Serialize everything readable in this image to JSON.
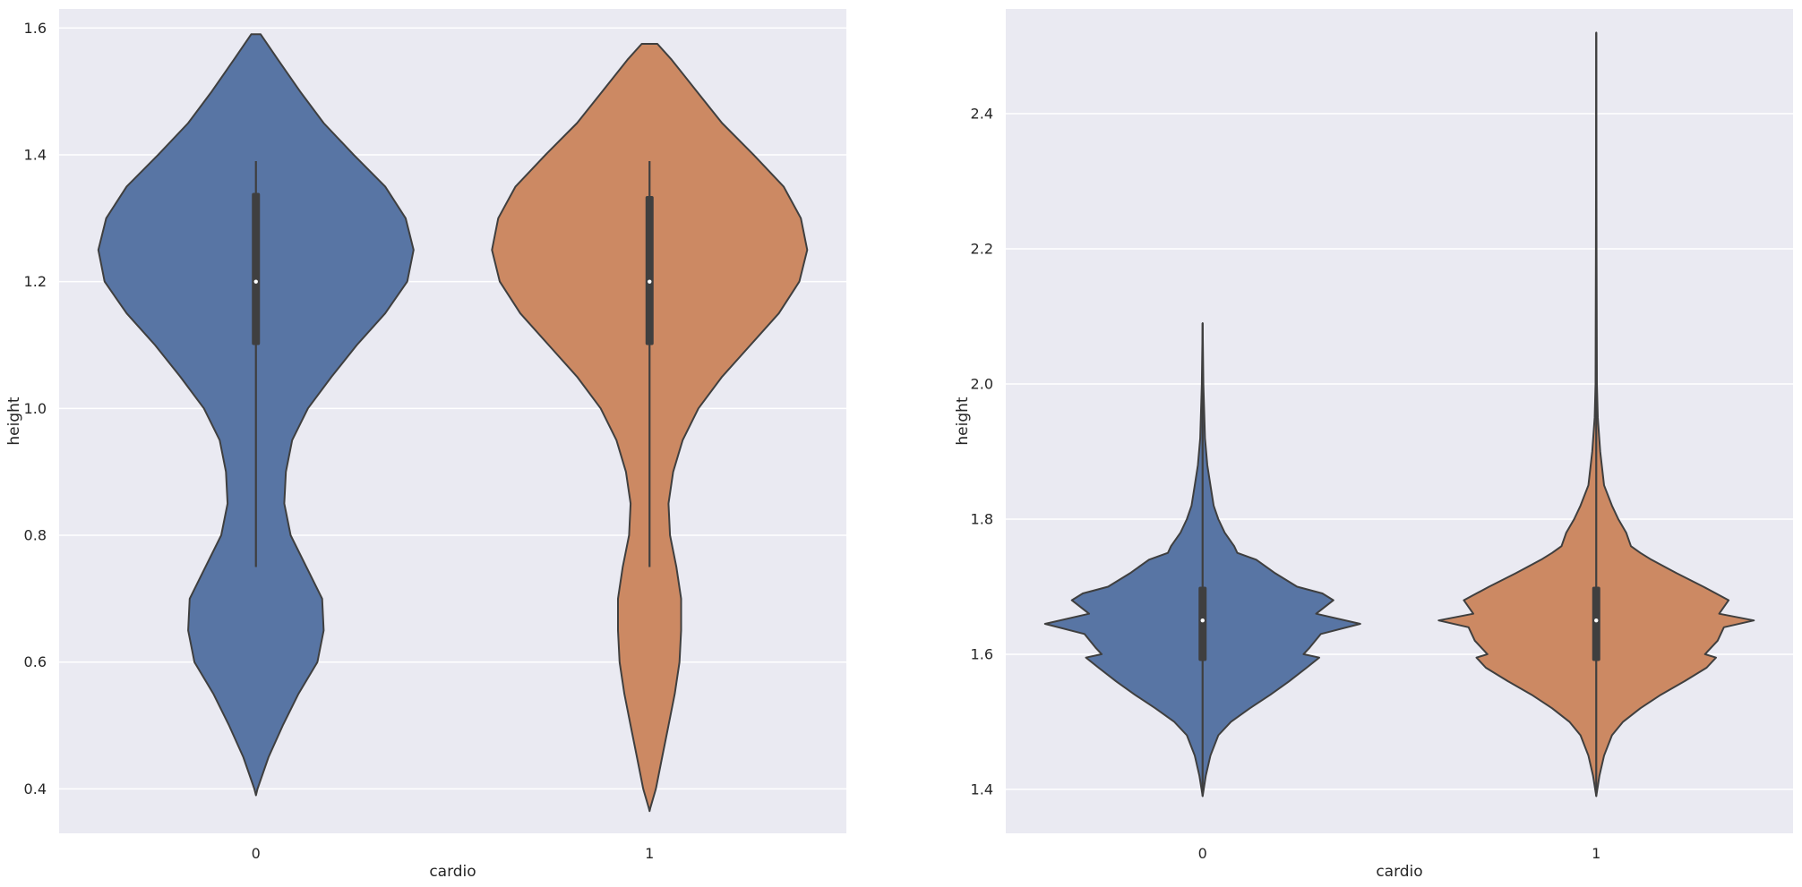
{
  "chart_data": [
    {
      "type": "violin",
      "xlabel": "cardio",
      "ylabel": "height",
      "ylim": [
        0.33,
        1.63
      ],
      "yticks": [
        0.4,
        0.6,
        0.8,
        1.0,
        1.2,
        1.4,
        1.6
      ],
      "ytick_labels": [
        "0.4",
        "0.6",
        "0.8",
        "1.0",
        "1.2",
        "1.4",
        "1.6"
      ],
      "categories": [
        "0",
        "1"
      ],
      "grid": true,
      "violins": [
        {
          "category": "0",
          "color": "#5875a4",
          "density_y": [
            0.39,
            0.4,
            0.45,
            0.5,
            0.55,
            0.6,
            0.65,
            0.7,
            0.75,
            0.8,
            0.85,
            0.9,
            0.95,
            1.0,
            1.05,
            1.1,
            1.15,
            1.2,
            1.25,
            1.3,
            1.35,
            1.4,
            1.45,
            1.5,
            1.55,
            1.59
          ],
          "density_width": [
            0.0,
            0.01,
            0.08,
            0.17,
            0.27,
            0.39,
            0.43,
            0.42,
            0.32,
            0.22,
            0.18,
            0.19,
            0.23,
            0.33,
            0.48,
            0.64,
            0.82,
            0.96,
            1.0,
            0.95,
            0.82,
            0.62,
            0.43,
            0.28,
            0.14,
            0.03
          ],
          "box": {
            "whisker_low": 0.75,
            "q1": 1.1,
            "median": 1.2,
            "q3": 1.34,
            "whisker_high": 1.39
          }
        },
        {
          "category": "1",
          "color": "#cc8963",
          "density_y": [
            0.365,
            0.37,
            0.4,
            0.45,
            0.5,
            0.55,
            0.6,
            0.65,
            0.7,
            0.75,
            0.8,
            0.85,
            0.9,
            0.95,
            1.0,
            1.05,
            1.1,
            1.15,
            1.2,
            1.25,
            1.3,
            1.35,
            1.4,
            1.45,
            1.5,
            1.55,
            1.575
          ],
          "density_width": [
            0.0,
            0.005,
            0.04,
            0.08,
            0.12,
            0.16,
            0.19,
            0.2,
            0.2,
            0.17,
            0.13,
            0.12,
            0.15,
            0.21,
            0.31,
            0.46,
            0.64,
            0.82,
            0.95,
            1.0,
            0.96,
            0.85,
            0.66,
            0.46,
            0.3,
            0.14,
            0.05
          ],
          "box": {
            "whisker_low": 0.75,
            "q1": 1.1,
            "median": 1.2,
            "q3": 1.335,
            "whisker_high": 1.39
          }
        }
      ]
    },
    {
      "type": "violin",
      "xlabel": "cardio",
      "ylabel": "height",
      "ylim": [
        1.335,
        2.555
      ],
      "yticks": [
        1.4,
        1.6,
        1.8,
        2.0,
        2.2,
        2.4
      ],
      "ytick_labels": [
        "1.4",
        "1.6",
        "1.8",
        "2.0",
        "2.2",
        "2.4"
      ],
      "categories": [
        "0",
        "1"
      ],
      "grid": true,
      "violins": [
        {
          "category": "0",
          "color": "#5875a4",
          "density_y": [
            1.39,
            1.42,
            1.45,
            1.48,
            1.5,
            1.52,
            1.54,
            1.56,
            1.58,
            1.595,
            1.6,
            1.61,
            1.63,
            1.645,
            1.66,
            1.68,
            1.69,
            1.7,
            1.72,
            1.74,
            1.75,
            1.76,
            1.78,
            1.8,
            1.82,
            1.85,
            1.88,
            1.92,
            2.0,
            2.09
          ],
          "density_width": [
            0.0,
            0.02,
            0.05,
            0.1,
            0.18,
            0.3,
            0.43,
            0.55,
            0.66,
            0.74,
            0.64,
            0.68,
            0.75,
            1.0,
            0.72,
            0.83,
            0.76,
            0.6,
            0.46,
            0.34,
            0.22,
            0.2,
            0.14,
            0.1,
            0.07,
            0.05,
            0.03,
            0.015,
            0.005,
            0.0
          ],
          "box": {
            "whisker_low": 1.39,
            "q1": 1.59,
            "median": 1.65,
            "q3": 1.7,
            "whisker_high": 2.09
          }
        },
        {
          "category": "1",
          "color": "#cc8963",
          "density_y": [
            1.39,
            1.42,
            1.45,
            1.48,
            1.5,
            1.52,
            1.54,
            1.56,
            1.58,
            1.595,
            1.6,
            1.62,
            1.64,
            1.65,
            1.66,
            1.68,
            1.7,
            1.72,
            1.74,
            1.75,
            1.76,
            1.78,
            1.8,
            1.82,
            1.85,
            1.9,
            1.95,
            2.0,
            2.2,
            2.52
          ],
          "density_width": [
            0.0,
            0.02,
            0.05,
            0.1,
            0.17,
            0.28,
            0.41,
            0.56,
            0.7,
            0.76,
            0.69,
            0.77,
            0.81,
            1.0,
            0.78,
            0.84,
            0.68,
            0.51,
            0.35,
            0.28,
            0.22,
            0.19,
            0.14,
            0.1,
            0.05,
            0.025,
            0.01,
            0.004,
            0.002,
            0.0
          ],
          "box": {
            "whisker_low": 1.39,
            "q1": 1.59,
            "median": 1.65,
            "q3": 1.7,
            "whisker_high": 2.52
          }
        }
      ]
    }
  ]
}
